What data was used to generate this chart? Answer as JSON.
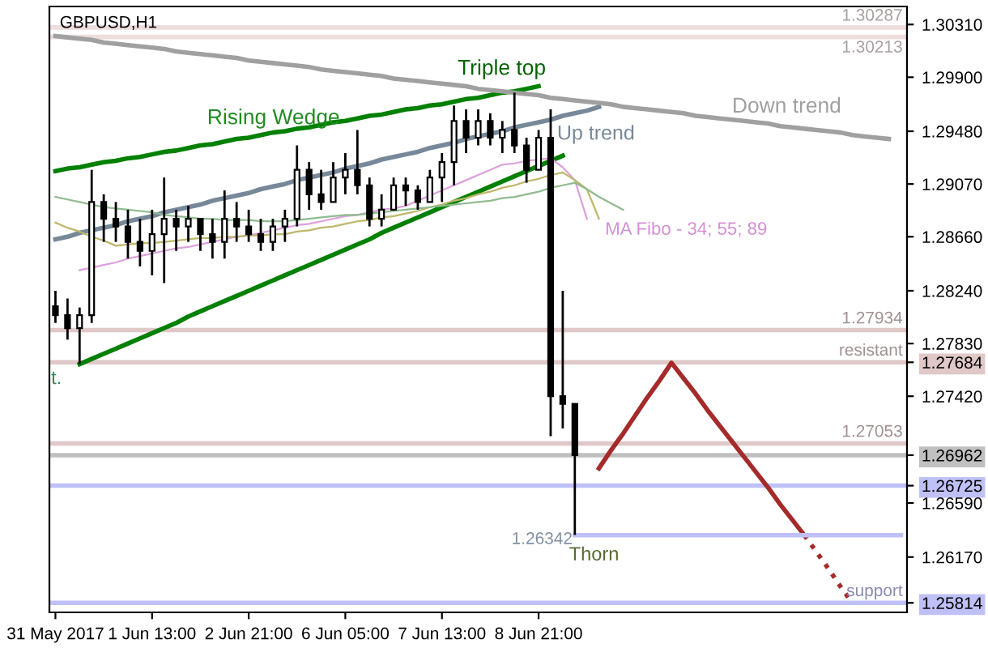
{
  "chart_data": {
    "type": "candlestick",
    "title": "GBPUSD,H1",
    "color": "#000000",
    "categories": [
      "31 May 2017",
      null,
      null,
      null,
      null,
      null,
      null,
      null,
      "1 Jun 13:00",
      null,
      null,
      null,
      null,
      null,
      null,
      null,
      "2 Jun 21:00",
      null,
      null,
      null,
      null,
      null,
      null,
      null,
      "6 Jun 05:00",
      null,
      null,
      null,
      null,
      null,
      null,
      null,
      "7 Jun 13:00",
      null,
      null,
      null,
      null,
      null,
      null,
      null,
      "8 Jun 21:00",
      null,
      null,
      null,
      null,
      null,
      null,
      null,
      null,
      null,
      null,
      null,
      null,
      null,
      null,
      null,
      null,
      null,
      null,
      null,
      null,
      null,
      null,
      null,
      null,
      null,
      null,
      null,
      null,
      null,
      null
    ],
    "ohlc": [
      [
        1.2812,
        1.2824,
        1.2799,
        1.2805
      ],
      [
        1.2805,
        1.2818,
        1.2786,
        1.2795
      ],
      [
        1.2795,
        1.2811,
        1.2767,
        1.2805
      ],
      [
        1.2805,
        1.2918,
        1.2799,
        1.2893
      ],
      [
        1.2893,
        1.2899,
        1.2862,
        1.288
      ],
      [
        1.288,
        1.2893,
        1.2862,
        1.2874
      ],
      [
        1.2874,
        1.2887,
        1.2849,
        1.2862
      ],
      [
        1.2862,
        1.288,
        1.2843,
        1.2855
      ],
      [
        1.2855,
        1.2887,
        1.2836,
        1.2868
      ],
      [
        1.2868,
        1.2912,
        1.283,
        1.288
      ],
      [
        1.288,
        1.2887,
        1.2855,
        1.2874
      ],
      [
        1.2874,
        1.289,
        1.2862,
        1.288
      ],
      [
        1.288,
        1.288,
        1.2855,
        1.2868
      ],
      [
        1.2868,
        1.288,
        1.2849,
        1.2862
      ],
      [
        1.2862,
        1.2902,
        1.2849,
        1.288
      ],
      [
        1.288,
        1.2893,
        1.2862,
        1.2874
      ],
      [
        1.2874,
        1.2887,
        1.2862,
        1.2868
      ],
      [
        1.2868,
        1.288,
        1.2855,
        1.2862
      ],
      [
        1.2862,
        1.288,
        1.2855,
        1.2874
      ],
      [
        1.2874,
        1.2887,
        1.2862,
        1.288
      ],
      [
        1.288,
        1.2937,
        1.2874,
        1.2918
      ],
      [
        1.2918,
        1.2924,
        1.2887,
        1.2899
      ],
      [
        1.2899,
        1.2918,
        1.2887,
        1.2893
      ],
      [
        1.2893,
        1.2924,
        1.2893,
        1.2912
      ],
      [
        1.2912,
        1.2931,
        1.2899,
        1.2918
      ],
      [
        1.2918,
        1.2949,
        1.2899,
        1.2906
      ],
      [
        1.2906,
        1.2912,
        1.2874,
        1.288
      ],
      [
        1.288,
        1.2899,
        1.2874,
        1.2887
      ],
      [
        1.2887,
        1.2912,
        1.2887,
        1.2906
      ],
      [
        1.2906,
        1.2912,
        1.289,
        1.2902
      ],
      [
        1.2902,
        1.2906,
        1.2887,
        1.2893
      ],
      [
        1.2893,
        1.2918,
        1.2893,
        1.2912
      ],
      [
        1.2912,
        1.2931,
        1.2893,
        1.2924
      ],
      [
        1.2924,
        1.2968,
        1.2906,
        1.2956
      ],
      [
        1.2956,
        1.2965,
        1.2931,
        1.2943
      ],
      [
        1.2943,
        1.2965,
        1.2937,
        1.2956
      ],
      [
        1.2956,
        1.2962,
        1.2937,
        1.2943
      ],
      [
        1.2943,
        1.2956,
        1.2931,
        1.2949
      ],
      [
        1.2949,
        1.2978,
        1.2931,
        1.2937
      ],
      [
        1.2937,
        1.2943,
        1.2908,
        1.2918
      ],
      [
        1.2918,
        1.2949,
        1.2918,
        1.2943
      ],
      [
        1.2943,
        1.2965,
        1.2711,
        1.2742
      ],
      [
        1.2742,
        1.2824,
        1.2717,
        1.2736
      ],
      [
        1.2736,
        1.2736,
        1.26342,
        1.26962
      ],
      null,
      null,
      null,
      null,
      null,
      null,
      null,
      null,
      null,
      null,
      null,
      null,
      null,
      null,
      null,
      null,
      null,
      null,
      null,
      null,
      null,
      null,
      null,
      null,
      null,
      null,
      null
    ],
    "series": [
      {
        "type": "line",
        "color": "#008000",
        "values": [
          1.2917,
          1.2919,
          1.292,
          1.2922,
          1.2924,
          1.2925,
          1.2927,
          1.2928,
          1.293,
          1.2932,
          1.2933,
          1.2935,
          1.2937,
          1.2938,
          1.294,
          1.2942,
          1.2943,
          1.2945,
          1.2947,
          1.2948,
          1.295,
          1.2951,
          1.2953,
          1.2955,
          1.2956,
          1.2958,
          1.296,
          1.2961,
          1.2963,
          1.2965,
          1.2966,
          1.2968,
          1.2969,
          1.2971,
          1.2973,
          1.2974,
          1.2976,
          1.2978,
          1.2979,
          1.2981,
          1.2983,
          null,
          null,
          null,
          null,
          null,
          null,
          null,
          null,
          null,
          null,
          null,
          null,
          null,
          null,
          null,
          null,
          null,
          null,
          null,
          null,
          null,
          null,
          null,
          null,
          null,
          null,
          null,
          null,
          null,
          null
        ]
      },
      {
        "type": "line",
        "color": "#008000",
        "values": [
          null,
          null,
          1.2767,
          1.2771,
          1.2775,
          1.2779,
          1.2783,
          1.2787,
          1.2791,
          1.2795,
          1.2799,
          1.2804,
          1.2808,
          1.2812,
          1.2816,
          1.282,
          1.2824,
          1.2828,
          1.2832,
          1.2836,
          1.284,
          1.2844,
          1.2848,
          1.2852,
          1.2856,
          1.286,
          1.2864,
          1.2869,
          1.2873,
          1.2877,
          1.2881,
          1.2885,
          1.2889,
          1.2893,
          1.2897,
          1.2901,
          1.2905,
          1.2909,
          1.2913,
          1.2917,
          1.2921,
          1.2925,
          1.2929,
          null,
          null,
          null,
          null,
          null,
          null,
          null,
          null,
          null,
          null,
          null,
          null,
          null,
          null,
          null,
          null,
          null,
          null,
          null,
          null,
          null,
          null,
          null,
          null,
          null,
          null,
          null,
          null
        ]
      },
      {
        "type": "line",
        "color": "#778899",
        "values": [
          1.2864,
          1.2866,
          1.2869,
          1.2871,
          1.2873,
          1.2875,
          1.2878,
          1.288,
          1.2882,
          1.2885,
          1.2887,
          1.2889,
          1.2891,
          1.2894,
          1.2896,
          1.2898,
          1.29,
          1.2903,
          1.2905,
          1.2907,
          1.291,
          1.2912,
          1.2914,
          1.2916,
          1.2919,
          1.2921,
          1.2923,
          1.2926,
          1.2928,
          1.293,
          1.2932,
          1.2935,
          1.2937,
          1.2939,
          1.2942,
          1.2944,
          1.2946,
          1.2948,
          1.2951,
          1.2953,
          1.2955,
          1.2957,
          1.296,
          1.2962,
          1.2964,
          1.2967,
          null,
          null,
          null,
          null,
          null,
          null,
          null,
          null,
          null,
          null,
          null,
          null,
          null,
          null,
          null,
          null,
          null,
          null,
          null,
          null,
          null,
          null,
          null,
          null,
          null
        ]
      },
      {
        "type": "line",
        "color": "#a0a0a0",
        "values": [
          1.3022,
          1.3021,
          1.302,
          1.3019,
          1.3017,
          1.3016,
          1.3015,
          1.3014,
          1.3013,
          1.3012,
          1.301,
          1.3009,
          1.3008,
          1.3007,
          1.3006,
          1.3005,
          1.3003,
          1.3002,
          1.3001,
          1.3,
          1.2999,
          1.2998,
          1.2996,
          1.2995,
          1.2994,
          1.2993,
          1.2992,
          1.2991,
          1.2989,
          1.2988,
          1.2987,
          1.2986,
          1.2985,
          1.2984,
          1.2983,
          1.2981,
          1.298,
          1.2979,
          1.2978,
          1.2977,
          1.2976,
          1.2974,
          1.2973,
          1.2972,
          1.2971,
          1.297,
          1.2969,
          1.2967,
          1.2966,
          1.2965,
          1.2964,
          1.2963,
          1.2962,
          1.296,
          1.2959,
          1.2958,
          1.2957,
          1.2956,
          1.2955,
          1.2954,
          1.2952,
          1.2951,
          1.295,
          1.2949,
          1.2948,
          1.2947,
          1.2945,
          1.2944,
          1.2943,
          1.2942,
          null
        ]
      },
      {
        "type": "line",
        "color": "#a52a2a",
        "values": [
          null,
          null,
          null,
          null,
          null,
          null,
          null,
          null,
          null,
          null,
          null,
          null,
          null,
          null,
          null,
          null,
          null,
          null,
          null,
          null,
          null,
          null,
          null,
          null,
          null,
          null,
          null,
          null,
          null,
          null,
          null,
          null,
          null,
          null,
          null,
          null,
          null,
          null,
          null,
          null,
          null,
          null,
          null,
          null,
          null,
          1.2686,
          1.27,
          1.2713,
          1.2727,
          1.2741,
          1.2754,
          1.2768,
          1.2756,
          1.2744,
          1.2731,
          1.2719,
          1.2707,
          1.2695,
          1.2683,
          1.2671,
          1.2658,
          1.2646,
          1.2634,
          null,
          null,
          null,
          null,
          null,
          null,
          null,
          null
        ]
      },
      {
        "type": "line",
        "color": "#a52a2a",
        "line_style": "dotted",
        "values": [
          null,
          null,
          null,
          null,
          null,
          null,
          null,
          null,
          null,
          null,
          null,
          null,
          null,
          null,
          null,
          null,
          null,
          null,
          null,
          null,
          null,
          null,
          null,
          null,
          null,
          null,
          null,
          null,
          null,
          null,
          null,
          null,
          null,
          null,
          null,
          null,
          null,
          null,
          null,
          null,
          null,
          null,
          null,
          null,
          null,
          null,
          null,
          null,
          null,
          null,
          null,
          null,
          null,
          null,
          null,
          null,
          null,
          null,
          null,
          null,
          null,
          null,
          1.2634,
          1.2621,
          1.2608,
          1.2594,
          1.2581,
          null,
          null,
          null,
          null
        ]
      },
      {
        "type": "line",
        "color": "#c0c0f8",
        "values": [
          null,
          null,
          null,
          null,
          null,
          null,
          null,
          null,
          null,
          null,
          null,
          null,
          null,
          null,
          null,
          null,
          null,
          null,
          null,
          null,
          null,
          null,
          null,
          null,
          null,
          null,
          null,
          null,
          null,
          null,
          null,
          null,
          null,
          null,
          null,
          null,
          null,
          null,
          null,
          null,
          null,
          null,
          null,
          1.2634,
          1.2634,
          1.2634,
          1.2634,
          1.2634,
          1.2634,
          1.2634,
          1.2634,
          1.2634,
          1.2634,
          1.2634,
          1.2634,
          1.2634,
          1.2634,
          1.2634,
          1.2634,
          1.2634,
          1.2634,
          1.2634,
          1.2634,
          1.2634,
          1.2634,
          1.2634,
          1.2634,
          1.2634,
          1.2634,
          1.2634,
          1.2634
        ]
      },
      {
        "type": "line",
        "color": "#dda0dd",
        "values": [
          null,
          null,
          1.284,
          1.2842,
          1.2844,
          1.2846,
          1.2849,
          1.2851,
          1.2853,
          1.2855,
          1.2857,
          1.2858,
          1.286,
          1.2862,
          1.2864,
          1.2866,
          1.2867,
          1.2869,
          1.2871,
          1.2873,
          1.2875,
          1.2876,
          1.2878,
          1.288,
          1.2882,
          1.2883,
          1.2885,
          1.2887,
          1.2888,
          1.289,
          1.2894,
          1.2898,
          1.2902,
          1.2906,
          1.291,
          1.2914,
          1.2918,
          1.2922,
          1.2923,
          1.2925,
          1.2926,
          1.2927,
          1.292,
          1.291,
          1.288,
          null,
          null,
          null,
          null,
          null,
          null,
          null,
          null,
          null,
          null,
          null,
          null,
          null,
          null,
          null,
          null,
          null,
          null,
          null,
          null,
          null,
          null,
          null,
          null,
          null,
          null
        ]
      },
      {
        "type": "line",
        "color": "#bdb76b",
        "values": [
          1.2877,
          1.2873,
          1.287,
          1.2866,
          1.2863,
          1.2859,
          1.286,
          1.2861,
          1.2861,
          1.2862,
          1.2863,
          1.2864,
          1.2865,
          1.2865,
          1.2866,
          1.2866,
          1.2867,
          1.2867,
          1.2868,
          1.2868,
          1.287,
          1.2871,
          1.2873,
          1.2874,
          1.2876,
          1.2878,
          1.2879,
          1.2881,
          1.2882,
          1.2884,
          1.2886,
          1.2889,
          1.2891,
          1.2894,
          1.2896,
          1.2899,
          1.2901,
          1.2904,
          1.2906,
          1.2909,
          1.2911,
          1.2914,
          1.2916,
          1.291,
          1.2903,
          1.288,
          null,
          null,
          null,
          null,
          null,
          null,
          null,
          null,
          null,
          null,
          null,
          null,
          null,
          null,
          null,
          null,
          null,
          null,
          null,
          null,
          null,
          null,
          null,
          null,
          null
        ]
      },
      {
        "type": "line",
        "color": "#8fbc8f",
        "values": [
          1.2897,
          1.2895,
          1.2893,
          1.2891,
          1.2889,
          1.2888,
          1.2887,
          1.2886,
          1.2885,
          1.2883,
          1.2882,
          1.2881,
          1.288,
          1.288,
          1.2879,
          1.2879,
          1.2879,
          1.2878,
          1.2878,
          1.2878,
          1.2879,
          1.288,
          1.2881,
          1.2882,
          1.2883,
          1.2883,
          1.2884,
          1.2885,
          1.2886,
          1.2887,
          1.2888,
          1.2889,
          1.289,
          1.2891,
          1.2892,
          1.2893,
          1.2894,
          1.2896,
          1.2897,
          1.2899,
          1.2901,
          1.2904,
          1.2906,
          1.2908,
          1.2903,
          1.2897,
          1.2892,
          1.2887,
          null,
          null,
          null,
          null,
          null,
          null,
          null,
          null,
          null,
          null,
          null,
          null,
          null,
          null,
          null,
          null,
          null,
          null,
          null,
          null,
          null,
          null,
          null
        ]
      }
    ],
    "ref_lines": [
      {
        "axis": "y",
        "value": 1.30287,
        "label": "1.30287",
        "color": "#eedddd"
      },
      {
        "axis": "y",
        "value": 1.30213,
        "label": "1.30213",
        "color": "#eedddd"
      },
      {
        "axis": "y",
        "value": 1.27934,
        "label": "1.27934",
        "color": "#e0c8c8"
      },
      {
        "axis": "y",
        "value": 1.27684,
        "label": "resistant",
        "color": "#e0c8c8"
      },
      {
        "axis": "y",
        "value": 1.27053,
        "label": "1.27053",
        "color": "#e0c8c8"
      },
      {
        "axis": "y",
        "value": 1.26962,
        "color": "#c0c0c0"
      },
      {
        "axis": "y",
        "value": 1.26725,
        "color": "#c0c0f8"
      },
      {
        "axis": "y",
        "value": 1.25814,
        "label": "support",
        "color": "#c0c0f8"
      }
    ],
    "annotations": [
      "1.26342",
      "Thorn",
      "t.",
      "Rising Wedge",
      {
        "text": "Triple top",
        "y": 1.2978
      },
      "Down trend",
      "Up trend",
      "MA Fibo - 34; 55; 89"
    ],
    "ylim": [
      1.2574,
      1.3045
    ],
    "yticks": [
      {
        "value": 1.3031,
        "label": "1.30310"
      },
      {
        "value": 1.299,
        "label": "1.29900"
      },
      {
        "value": 1.2948,
        "label": "1.29480"
      },
      {
        "value": 1.2907,
        "label": "1.29070"
      },
      {
        "value": 1.2866,
        "label": "1.28660"
      },
      {
        "value": 1.2824,
        "label": "1.28240"
      },
      {
        "value": 1.2783,
        "label": "1.27830"
      },
      1.27684,
      {
        "value": 1.2742,
        "label": "1.27420"
      },
      1.26962,
      1.26725,
      {
        "value": 1.2659,
        "label": "1.26590"
      },
      {
        "value": 1.2617,
        "label": "1.26170"
      },
      1.25814
    ]
  }
}
